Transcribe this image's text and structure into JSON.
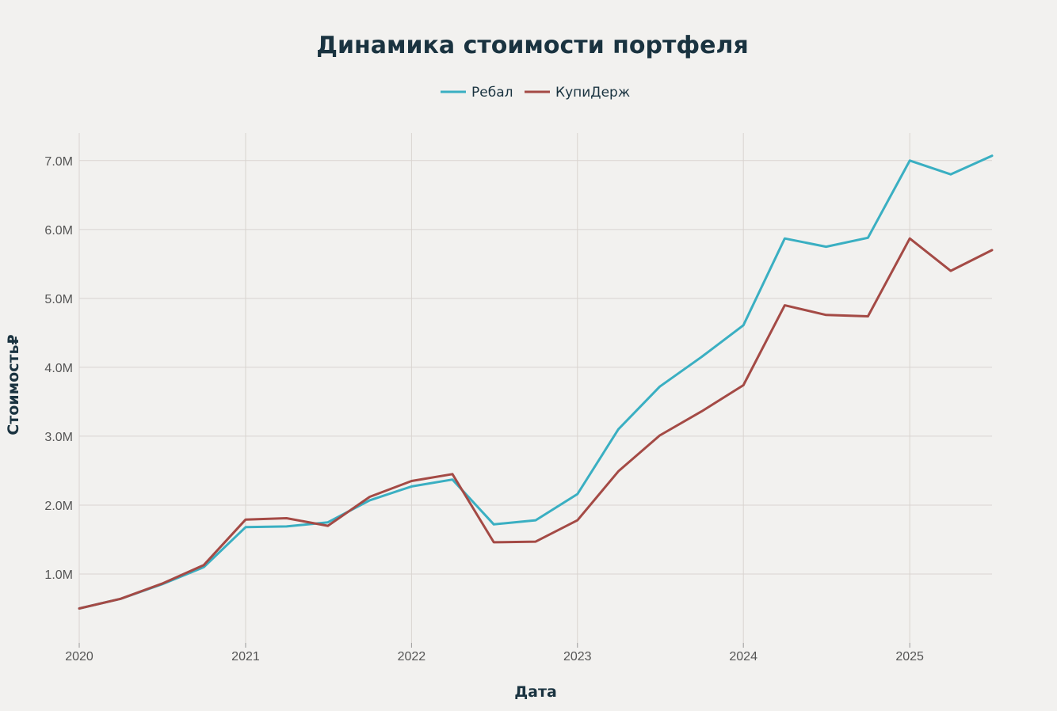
{
  "chart_data": {
    "type": "line",
    "title": "Динамика стоимости портфеля",
    "xlabel": "Дата",
    "ylabel": "Стоимость₽",
    "x_ticks": [
      "2020",
      "2021",
      "2022",
      "2023",
      "2024",
      "2025"
    ],
    "y_ticks": [
      "1.0M",
      "2.0M",
      "3.0M",
      "4.0M",
      "5.0M",
      "6.0M",
      "7.0M"
    ],
    "x_range": [
      "2020-01-01",
      "2025-07-01"
    ],
    "ylim": [
      0.0,
      7.4
    ],
    "grid": true,
    "legend_position": "top-center",
    "x": [
      "2020-01-01",
      "2020-04-01",
      "2020-07-01",
      "2020-10-01",
      "2021-01-01",
      "2021-04-01",
      "2021-07-01",
      "2021-10-01",
      "2022-01-01",
      "2022-04-01",
      "2022-07-01",
      "2022-10-01",
      "2023-01-01",
      "2023-04-01",
      "2023-07-01",
      "2023-10-01",
      "2024-01-01",
      "2024-04-01",
      "2024-07-01",
      "2024-10-01",
      "2025-01-01",
      "2025-04-01",
      "2025-07-01"
    ],
    "series": [
      {
        "name": "Ребал",
        "color": "#3aafc2",
        "values": [
          0.5,
          0.64,
          0.85,
          1.1,
          1.68,
          1.69,
          1.75,
          2.07,
          2.27,
          2.37,
          1.72,
          1.78,
          2.16,
          3.1,
          3.72,
          4.15,
          4.61,
          5.87,
          5.75,
          5.88,
          7.0,
          6.8,
          7.07
        ]
      },
      {
        "name": "КупиДерж",
        "color": "#a44a45",
        "values": [
          0.5,
          0.64,
          0.86,
          1.13,
          1.79,
          1.81,
          1.7,
          2.12,
          2.35,
          2.45,
          1.46,
          1.47,
          1.78,
          2.49,
          3.01,
          3.36,
          3.74,
          4.9,
          4.76,
          4.74,
          5.87,
          5.4,
          5.7
        ]
      }
    ]
  }
}
